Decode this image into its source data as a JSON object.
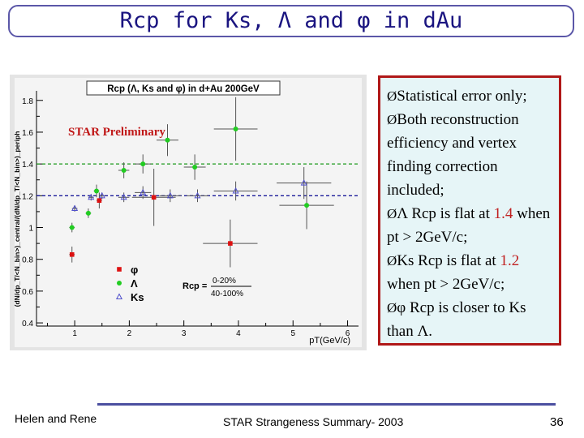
{
  "slide": {
    "title": "Rcp for Ks, Λ and φ in dAu",
    "footer_left": "Helen and Rene",
    "footer_center": "STAR Strangeness Summary- 2003",
    "page_number": "36",
    "accent_color": "#1a1480",
    "box_border_color": "#b01818"
  },
  "bullets": [
    {
      "arrow": "Ø",
      "text": "Statistical error only;"
    },
    {
      "arrow": "Ø",
      "text": "Both reconstruction efficiency and vertex finding correction included;"
    },
    {
      "arrow": "Ø",
      "pre": "Λ Rcp is flat at ",
      "value": "1.4",
      "post": " when pt > 2GeV/c;"
    },
    {
      "arrow": "Ø",
      "pre": "Ks Rcp is flat at ",
      "value": "1.2",
      "post": " when pt > 2GeV/c;"
    },
    {
      "arrow": "Ø",
      "text": "φ Rcp is closer to Ks than Λ."
    }
  ],
  "chart_data": {
    "type": "scatter",
    "title": "Rcp (Λ, Ks and φ) in d+Au 200GeV",
    "annotation": "STAR Preliminary",
    "xlabel": "pT(GeV/c)",
    "ylabel": "(dN/dp_T/<N_bin>)_central/(dN/dp_T/<N_bin>)_periph",
    "xlim": [
      0.3,
      6.2
    ],
    "ylim": [
      0.38,
      1.86
    ],
    "xticks": [
      "1",
      "2",
      "3",
      "4",
      "5",
      "6"
    ],
    "yticks": [
      "0.4",
      "0.6",
      "0.8",
      "1",
      "1.2",
      "1.4",
      "1.6",
      "1.8"
    ],
    "reference_lines": [
      {
        "y": 1.4,
        "color": "#1a9a1a",
        "style": "dashed"
      },
      {
        "y": 1.2,
        "color": "#1a1a9a",
        "style": "dashed"
      }
    ],
    "legend": {
      "title_lines": [
        "Rcp =",
        "0-20%",
        "40-100%"
      ],
      "entries": [
        "φ",
        "Λ",
        "Ks"
      ],
      "placement": "bottom-center"
    },
    "series": [
      {
        "name": "φ",
        "color": "#dd1111",
        "marker": "square",
        "x": [
          0.95,
          1.45,
          2.45,
          3.85
        ],
        "y": [
          0.83,
          1.17,
          1.19,
          0.9
        ],
        "yerr": [
          0.05,
          0.05,
          0.18,
          0.15
        ],
        "xerr": [
          0.05,
          0.05,
          0.4,
          0.5
        ]
      },
      {
        "name": "Λ",
        "color": "#22cc22",
        "marker": "circle",
        "x": [
          0.95,
          1.25,
          1.4,
          1.9,
          2.25,
          2.7,
          3.2,
          3.95,
          5.25
        ],
        "y": [
          1.0,
          1.09,
          1.23,
          1.36,
          1.4,
          1.55,
          1.38,
          1.62,
          1.14
        ],
        "yerr": [
          0.03,
          0.03,
          0.04,
          0.05,
          0.06,
          0.1,
          0.08,
          0.2,
          0.15
        ],
        "xerr": [
          0.05,
          0.05,
          0.05,
          0.1,
          0.15,
          0.2,
          0.2,
          0.4,
          0.5
        ]
      },
      {
        "name": "Ks",
        "color": "#5050cc",
        "marker": "triangle",
        "x": [
          1.0,
          1.3,
          1.5,
          1.9,
          2.25,
          2.75,
          3.25,
          3.95,
          5.2
        ],
        "y": [
          1.12,
          1.19,
          1.2,
          1.19,
          1.22,
          1.2,
          1.2,
          1.23,
          1.28
        ],
        "yerr": [
          0.02,
          0.02,
          0.02,
          0.03,
          0.04,
          0.04,
          0.04,
          0.06,
          0.1
        ],
        "xerr": [
          0.05,
          0.05,
          0.05,
          0.1,
          0.15,
          0.2,
          0.2,
          0.4,
          0.5
        ]
      }
    ]
  }
}
